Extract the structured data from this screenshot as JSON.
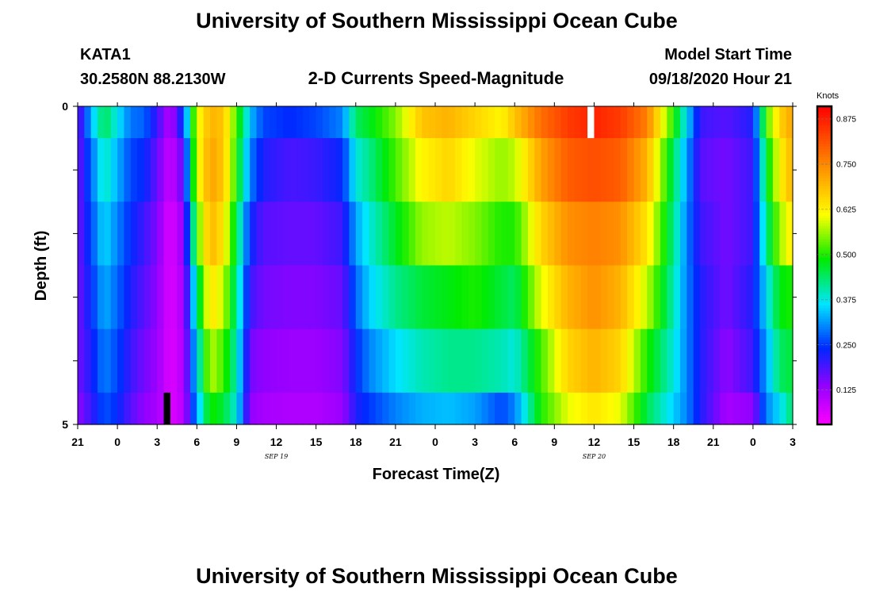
{
  "header": {
    "title_top": "University of Southern Mississippi Ocean Cube",
    "title_bottom": "University of Southern Mississippi Ocean Cube",
    "station_id": "KATA1",
    "station_coords": "30.2580N 88.2130W",
    "model_start_label": "Model Start Time",
    "model_start_value": "09/18/2020 Hour 21"
  },
  "chart_data": {
    "type": "heatmap",
    "title": "2-D Currents Speed-Magnitude",
    "xlabel": "Forecast Time(Z)",
    "ylabel": "Depth (ft)",
    "colorbar_title": "Knots",
    "x_hours": [
      0,
      3,
      6,
      9,
      12,
      15,
      18,
      21,
      24,
      27,
      30,
      33,
      36,
      39,
      42,
      45,
      48,
      51,
      54
    ],
    "x_tick_labels": [
      "21",
      "0",
      "3",
      "6",
      "9",
      "12",
      "15",
      "18",
      "21",
      "0",
      "3",
      "6",
      "9",
      "12",
      "15",
      "18",
      "21",
      "0",
      "3"
    ],
    "date_labels": [
      {
        "text": "SEP 19",
        "at_hour": 15
      },
      {
        "text": "SEP 20",
        "at_hour": 39
      }
    ],
    "y_tick_labels": [
      {
        "text": "0",
        "value": 0
      },
      {
        "text": "5",
        "value": 5
      }
    ],
    "ylim": [
      0,
      5
    ],
    "xlim": [
      0,
      54
    ],
    "colorbar": {
      "min": 0.03,
      "max": 0.91,
      "ticks": [
        "0.125",
        "0.250",
        "0.375",
        "0.500",
        "0.625",
        "0.750",
        "0.875"
      ],
      "tick_values": [
        0.125,
        0.25,
        0.375,
        0.5,
        0.625,
        0.75,
        0.875
      ]
    },
    "layer_bounds_ft": [
      0,
      0.5,
      1.5,
      2.5,
      3.5,
      4.5,
      5
    ],
    "profile_anchors": [
      {
        "hour": 0,
        "speeds": [
          0.16,
          0.16,
          0.16,
          0.16,
          0.16,
          0.14
        ]
      },
      {
        "hour": 1,
        "speeds": [
          0.33,
          0.28,
          0.26,
          0.24,
          0.22,
          0.2
        ]
      },
      {
        "hour": 2,
        "speeds": [
          0.45,
          0.4,
          0.36,
          0.33,
          0.3,
          0.27
        ]
      },
      {
        "hour": 3,
        "speeds": [
          0.37,
          0.33,
          0.3,
          0.28,
          0.26,
          0.24
        ]
      },
      {
        "hour": 4,
        "speeds": [
          0.29,
          0.26,
          0.24,
          0.22,
          0.2,
          0.18
        ]
      },
      {
        "hour": 5,
        "speeds": [
          0.28,
          0.24,
          0.2,
          0.18,
          0.16,
          0.14
        ]
      },
      {
        "hour": 6,
        "speeds": [
          0.2,
          0.17,
          0.15,
          0.14,
          0.13,
          0.12
        ]
      },
      {
        "hour": 7,
        "speeds": [
          0.1,
          0.08,
          0.06,
          0.06,
          0.06,
          0.06
        ]
      },
      {
        "hour": 8,
        "speeds": [
          0.26,
          0.18,
          0.14,
          0.12,
          0.11,
          0.1
        ]
      },
      {
        "hour": 9,
        "speeds": [
          0.6,
          0.6,
          0.52,
          0.42,
          0.36,
          0.32
        ]
      },
      {
        "hour": 10,
        "speeds": [
          0.7,
          0.72,
          0.7,
          0.65,
          0.58,
          0.5
        ]
      },
      {
        "hour": 11,
        "speeds": [
          0.68,
          0.68,
          0.64,
          0.58,
          0.52,
          0.46
        ]
      },
      {
        "hour": 12,
        "speeds": [
          0.52,
          0.5,
          0.45,
          0.42,
          0.4,
          0.38
        ]
      },
      {
        "hour": 13,
        "speeds": [
          0.34,
          0.3,
          0.24,
          0.2,
          0.16,
          0.14
        ]
      },
      {
        "hour": 14,
        "speeds": [
          0.26,
          0.22,
          0.18,
          0.16,
          0.14,
          0.12
        ]
      },
      {
        "hour": 16,
        "speeds": [
          0.24,
          0.19,
          0.17,
          0.15,
          0.13,
          0.11
        ]
      },
      {
        "hour": 18,
        "speeds": [
          0.26,
          0.2,
          0.17,
          0.15,
          0.13,
          0.11
        ]
      },
      {
        "hour": 20,
        "speeds": [
          0.3,
          0.24,
          0.2,
          0.17,
          0.15,
          0.13
        ]
      },
      {
        "hour": 21,
        "speeds": [
          0.44,
          0.38,
          0.32,
          0.28,
          0.24,
          0.22
        ]
      },
      {
        "hour": 22,
        "speeds": [
          0.47,
          0.42,
          0.38,
          0.35,
          0.3,
          0.25
        ]
      },
      {
        "hour": 24,
        "speeds": [
          0.55,
          0.52,
          0.47,
          0.42,
          0.36,
          0.3
        ]
      },
      {
        "hour": 26,
        "speeds": [
          0.68,
          0.62,
          0.56,
          0.46,
          0.4,
          0.33
        ]
      },
      {
        "hour": 28,
        "speeds": [
          0.7,
          0.66,
          0.58,
          0.48,
          0.42,
          0.34
        ]
      },
      {
        "hour": 30,
        "speeds": [
          0.66,
          0.6,
          0.55,
          0.5,
          0.42,
          0.32
        ]
      },
      {
        "hour": 32,
        "speeds": [
          0.62,
          0.56,
          0.5,
          0.46,
          0.4,
          0.26
        ]
      },
      {
        "hour": 33,
        "speeds": [
          0.68,
          0.58,
          0.5,
          0.44,
          0.38,
          0.3
        ]
      },
      {
        "hour": 35,
        "speeds": [
          0.78,
          0.72,
          0.66,
          0.6,
          0.52,
          0.5
        ]
      },
      {
        "hour": 37,
        "speeds": [
          0.84,
          0.8,
          0.74,
          0.7,
          0.66,
          0.6
        ]
      },
      {
        "hour": 39,
        "speeds": [
          0.87,
          0.82,
          0.76,
          0.74,
          0.7,
          0.64
        ]
      },
      {
        "hour": 41,
        "speeds": [
          0.84,
          0.8,
          0.74,
          0.7,
          0.66,
          0.6
        ]
      },
      {
        "hour": 43,
        "speeds": [
          0.76,
          0.7,
          0.64,
          0.58,
          0.5,
          0.45
        ]
      },
      {
        "hour": 45,
        "speeds": [
          0.5,
          0.44,
          0.42,
          0.4,
          0.38,
          0.35
        ]
      },
      {
        "hour": 46,
        "speeds": [
          0.36,
          0.32,
          0.3,
          0.3,
          0.3,
          0.3
        ]
      },
      {
        "hour": 47,
        "speeds": [
          0.2,
          0.18,
          0.2,
          0.22,
          0.22,
          0.22
        ]
      },
      {
        "hour": 49,
        "speeds": [
          0.18,
          0.16,
          0.16,
          0.16,
          0.14,
          0.12
        ]
      },
      {
        "hour": 51,
        "speeds": [
          0.22,
          0.2,
          0.2,
          0.22,
          0.2,
          0.14
        ]
      },
      {
        "hour": 52,
        "speeds": [
          0.52,
          0.46,
          0.42,
          0.36,
          0.32,
          0.3
        ]
      },
      {
        "hour": 53,
        "speeds": [
          0.66,
          0.62,
          0.56,
          0.48,
          0.44,
          0.36
        ]
      },
      {
        "hour": 54,
        "speeds": [
          0.72,
          0.7,
          0.64,
          0.5,
          0.46,
          0.44
        ]
      }
    ],
    "missing_cells": [
      {
        "hour_start": 38.5,
        "hour_end": 39.0,
        "depth_start": 0,
        "depth_end": 0.5,
        "color": "#ffffff"
      },
      {
        "hour_start": 6.5,
        "hour_end": 7.0,
        "depth_start": 4.5,
        "depth_end": 5,
        "color": "#000000"
      }
    ]
  }
}
